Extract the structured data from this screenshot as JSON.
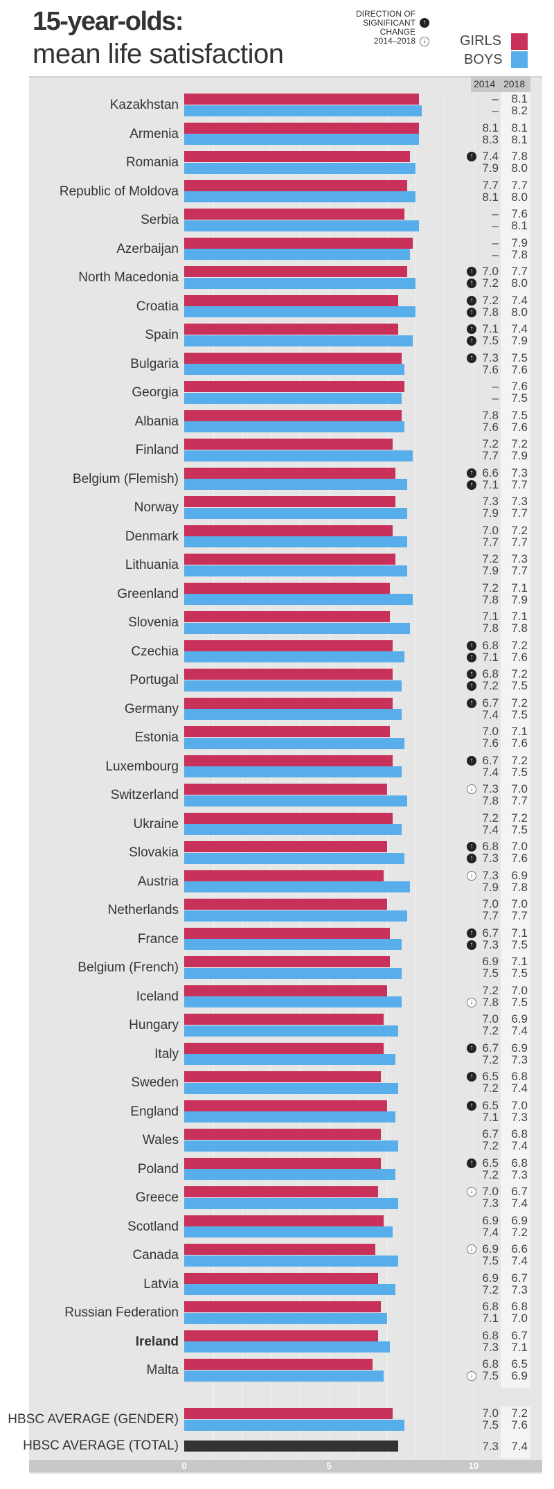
{
  "title_line1": "15-year-olds:",
  "title_line2": "mean life satisfaction",
  "direction_legend": [
    "DIRECTION OF",
    "SIGNIFICANT",
    "CHANGE",
    "2014–2018"
  ],
  "legend": {
    "girls": "GIRLS",
    "boys": "BOYS"
  },
  "colors": {
    "girls": "#c8325a",
    "boys": "#58aeea",
    "total": "#333333"
  },
  "columns": {
    "y2014": "2014",
    "y2018": "2018"
  },
  "chart_data": {
    "type": "bar",
    "orientation": "horizontal",
    "bars_show": "2018",
    "xlim": [
      0,
      10
    ],
    "x_ticks": [
      "0",
      "5",
      "10"
    ],
    "series_names": [
      "Girls",
      "Boys"
    ],
    "rows": [
      {
        "name": "Kazakhstan",
        "g14": "–",
        "g18": "8.1",
        "b14": "–",
        "b18": "8.2"
      },
      {
        "name": "Armenia",
        "g14": "8.1",
        "g18": "8.1",
        "b14": "8.3",
        "b18": "8.1"
      },
      {
        "name": "Romania",
        "g14": "7.4",
        "g18": "7.8",
        "b14": "7.9",
        "b18": "8.0",
        "ga": "up"
      },
      {
        "name": "Republic of Moldova",
        "g14": "7.7",
        "g18": "7.7",
        "b14": "8.1",
        "b18": "8.0"
      },
      {
        "name": "Serbia",
        "g14": "–",
        "g18": "7.6",
        "b14": "–",
        "b18": "8.1"
      },
      {
        "name": "Azerbaijan",
        "g14": "–",
        "g18": "7.9",
        "b14": "–",
        "b18": "7.8"
      },
      {
        "name": "North Macedonia",
        "g14": "7.0",
        "g18": "7.7",
        "b14": "7.2",
        "b18": "8.0",
        "ga": "up",
        "ba": "up"
      },
      {
        "name": "Croatia",
        "g14": "7.2",
        "g18": "7.4",
        "b14": "7.8",
        "b18": "8.0",
        "ga": "up",
        "ba": "up"
      },
      {
        "name": "Spain",
        "g14": "7.1",
        "g18": "7.4",
        "b14": "7.5",
        "b18": "7.9",
        "ga": "up",
        "ba": "up"
      },
      {
        "name": "Bulgaria",
        "g14": "7.3",
        "g18": "7.5",
        "b14": "7.6",
        "b18": "7.6",
        "ga": "up"
      },
      {
        "name": "Georgia",
        "g14": "–",
        "g18": "7.6",
        "b14": "–",
        "b18": "7.5"
      },
      {
        "name": "Albania",
        "g14": "7.8",
        "g18": "7.5",
        "b14": "7.6",
        "b18": "7.6"
      },
      {
        "name": "Finland",
        "g14": "7.2",
        "g18": "7.2",
        "b14": "7.7",
        "b18": "7.9"
      },
      {
        "name": "Belgium (Flemish)",
        "g14": "6.6",
        "g18": "7.3",
        "b14": "7.1",
        "b18": "7.7",
        "ga": "up",
        "ba": "up"
      },
      {
        "name": "Norway",
        "g14": "7.3",
        "g18": "7.3",
        "b14": "7.9",
        "b18": "7.7"
      },
      {
        "name": "Denmark",
        "g14": "7.0",
        "g18": "7.2",
        "b14": "7.7",
        "b18": "7.7"
      },
      {
        "name": "Lithuania",
        "g14": "7.2",
        "g18": "7.3",
        "b14": "7.9",
        "b18": "7.7"
      },
      {
        "name": "Greenland",
        "g14": "7.2",
        "g18": "7.1",
        "b14": "7.8",
        "b18": "7.9"
      },
      {
        "name": "Slovenia",
        "g14": "7.1",
        "g18": "7.1",
        "b14": "7.8",
        "b18": "7.8"
      },
      {
        "name": "Czechia",
        "g14": "6.8",
        "g18": "7.2",
        "b14": "7.1",
        "b18": "7.6",
        "ga": "up",
        "ba": "up"
      },
      {
        "name": "Portugal",
        "g14": "6.8",
        "g18": "7.2",
        "b14": "7.2",
        "b18": "7.5",
        "ga": "up",
        "ba": "up"
      },
      {
        "name": "Germany",
        "g14": "6.7",
        "g18": "7.2",
        "b14": "7.4",
        "b18": "7.5",
        "ga": "up"
      },
      {
        "name": "Estonia",
        "g14": "7.0",
        "g18": "7.1",
        "b14": "7.6",
        "b18": "7.6"
      },
      {
        "name": "Luxembourg",
        "g14": "6.7",
        "g18": "7.2",
        "b14": "7.4",
        "b18": "7.5",
        "ga": "up"
      },
      {
        "name": "Switzerland",
        "g14": "7.3",
        "g18": "7.0",
        "b14": "7.8",
        "b18": "7.7",
        "ga": "down"
      },
      {
        "name": "Ukraine",
        "g14": "7.2",
        "g18": "7.2",
        "b14": "7.4",
        "b18": "7.5"
      },
      {
        "name": "Slovakia",
        "g14": "6.8",
        "g18": "7.0",
        "b14": "7.3",
        "b18": "7.6",
        "ga": "up",
        "ba": "up"
      },
      {
        "name": "Austria",
        "g14": "7.3",
        "g18": "6.9",
        "b14": "7.9",
        "b18": "7.8",
        "ga": "down"
      },
      {
        "name": "Netherlands",
        "g14": "7.0",
        "g18": "7.0",
        "b14": "7.7",
        "b18": "7.7"
      },
      {
        "name": "France",
        "g14": "6.7",
        "g18": "7.1",
        "b14": "7.3",
        "b18": "7.5",
        "ga": "up",
        "ba": "up"
      },
      {
        "name": "Belgium (French)",
        "g14": "6.9",
        "g18": "7.1",
        "b14": "7.5",
        "b18": "7.5"
      },
      {
        "name": "Iceland",
        "g14": "7.2",
        "g18": "7.0",
        "b14": "7.8",
        "b18": "7.5",
        "ba": "down"
      },
      {
        "name": "Hungary",
        "g14": "7.0",
        "g18": "6.9",
        "b14": "7.2",
        "b18": "7.4"
      },
      {
        "name": "Italy",
        "g14": "6.7",
        "g18": "6.9",
        "b14": "7.2",
        "b18": "7.3",
        "ga": "up"
      },
      {
        "name": "Sweden",
        "g14": "6.5",
        "g18": "6.8",
        "b14": "7.2",
        "b18": "7.4",
        "ga": "up"
      },
      {
        "name": "England",
        "g14": "6.5",
        "g18": "7.0",
        "b14": "7.1",
        "b18": "7.3",
        "ga": "up"
      },
      {
        "name": "Wales",
        "g14": "6.7",
        "g18": "6.8",
        "b14": "7.2",
        "b18": "7.4"
      },
      {
        "name": "Poland",
        "g14": "6.5",
        "g18": "6.8",
        "b14": "7.2",
        "b18": "7.3",
        "ga": "up"
      },
      {
        "name": "Greece",
        "g14": "7.0",
        "g18": "6.7",
        "b14": "7.3",
        "b18": "7.4",
        "ga": "down"
      },
      {
        "name": "Scotland",
        "g14": "6.9",
        "g18": "6.9",
        "b14": "7.4",
        "b18": "7.2"
      },
      {
        "name": "Canada",
        "g14": "6.9",
        "g18": "6.6",
        "b14": "7.5",
        "b18": "7.4",
        "ga": "down"
      },
      {
        "name": "Latvia",
        "g14": "6.9",
        "g18": "6.7",
        "b14": "7.2",
        "b18": "7.3"
      },
      {
        "name": "Russian Federation",
        "g14": "6.8",
        "g18": "6.8",
        "b14": "7.1",
        "b18": "7.0"
      },
      {
        "name": "Ireland",
        "g14": "6.8",
        "g18": "6.7",
        "b14": "7.3",
        "b18": "7.1",
        "highlight": true
      },
      {
        "name": "Malta",
        "g14": "6.8",
        "g18": "6.5",
        "b14": "7.5",
        "b18": "6.9",
        "ba": "down"
      }
    ],
    "average_gender": {
      "name": "HBSC AVERAGE (GENDER)",
      "g14": "7.0",
      "g18": "7.2",
      "b14": "7.5",
      "b18": "7.6"
    },
    "average_total": {
      "name": "HBSC AVERAGE (TOTAL)",
      "t14": "7.3",
      "t18": "7.4"
    }
  }
}
